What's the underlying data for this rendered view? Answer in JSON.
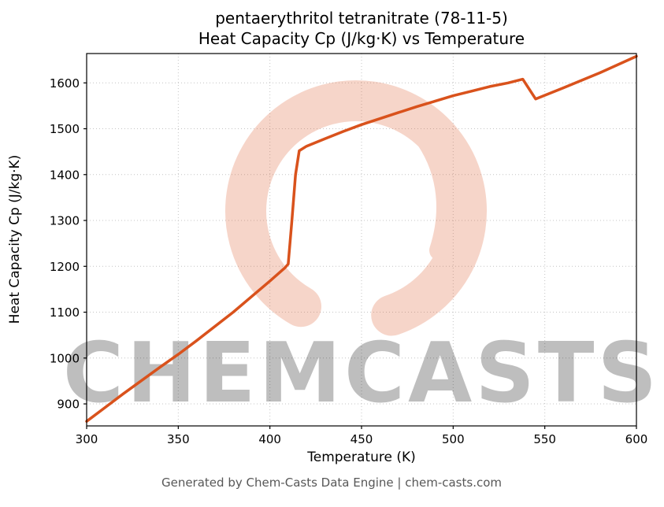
{
  "page": {
    "title_line1": "pentaerythritol tetranitrate (78-11-5)",
    "title_line2": "Heat Capacity Cp (J/kg·K) vs Temperature",
    "footer": "Generated by Chem-Casts Data Engine | chem-casts.com"
  },
  "watermark": {
    "text": "CHEMCASTS",
    "logo": "brush-circle-c-logo",
    "color": "#dd5a2e",
    "opacity": 0.25
  },
  "chart_data": {
    "type": "line",
    "title": "pentaerythritol tetranitrate (78-11-5) Heat Capacity Cp (J/kg·K) vs Temperature",
    "xlabel": "Temperature (K)",
    "ylabel": "Heat Capacity Cp (J/kg·K)",
    "xlim": [
      300,
      600
    ],
    "ylim": [
      852,
      1664
    ],
    "xticks": [
      300,
      350,
      400,
      450,
      500,
      550,
      600
    ],
    "yticks": [
      900,
      1000,
      1100,
      1200,
      1300,
      1400,
      1500,
      1600
    ],
    "grid": true,
    "grid_color": "#c4c4c4",
    "line_color": "#d9521c",
    "legend": "none",
    "series": [
      {
        "name": "Heat Capacity Cp",
        "x": [
          300,
          320,
          340,
          350,
          360,
          380,
          400,
          408,
          410,
          412,
          414,
          416,
          420,
          430,
          440,
          450,
          460,
          470,
          480,
          490,
          500,
          510,
          520,
          530,
          538,
          545,
          560,
          580,
          600
        ],
        "y": [
          862,
          922,
          980,
          1008,
          1038,
          1100,
          1168,
          1196,
          1205,
          1300,
          1400,
          1452,
          1462,
          1478,
          1494,
          1509,
          1522,
          1535,
          1548,
          1560,
          1572,
          1582,
          1592,
          1600,
          1608,
          1565,
          1589,
          1622,
          1658
        ]
      }
    ]
  }
}
